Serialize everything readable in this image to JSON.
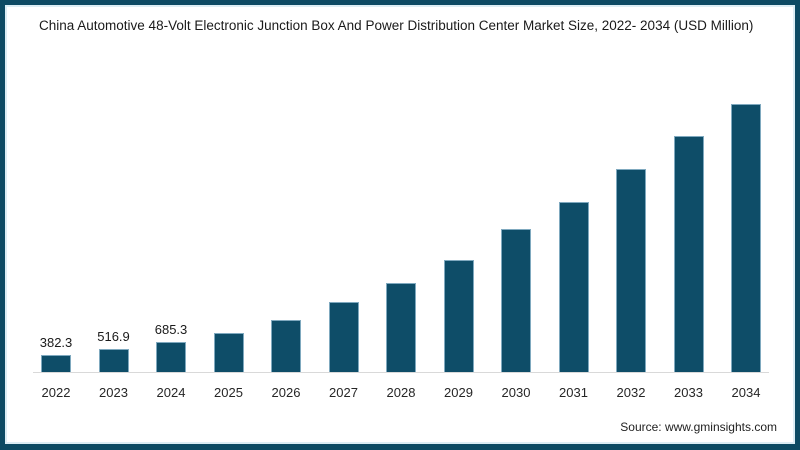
{
  "title": "China Automotive 48-Volt Electronic Junction Box And Power Distribution Center Market Size, 2022- 2034 (USD Million)",
  "source": "Source: www.gminsights.com",
  "colors": {
    "frame_border": "#0d4a63",
    "frame_inner_line": "#dcedf4",
    "bar_fill": "#0e4d68",
    "bar_border": "#7fa9bf",
    "axis_line": "#d9d9d9",
    "text": "#1a1a1a",
    "background": "#ffffff"
  },
  "chart_data": {
    "type": "bar",
    "title": "China Automotive 48-Volt Electronic Junction Box And Power Distribution Center Market Size, 2022- 2034 (USD Million)",
    "categories": [
      "2022",
      "2023",
      "2024",
      "2025",
      "2026",
      "2027",
      "2028",
      "2029",
      "2030",
      "2031",
      "2032",
      "2033",
      "2034"
    ],
    "values": [
      382.3,
      516.9,
      685.3,
      880,
      1155,
      1540,
      1965,
      2465,
      3125,
      3730,
      4445,
      5160,
      5850
    ],
    "data_labels": [
      "382.3",
      "516.9",
      "685.3",
      "",
      "",
      "",
      "",
      "",
      "",
      "",
      "",
      "",
      ""
    ],
    "xlabel": "",
    "ylabel": "",
    "ylim": [
      0,
      5960
    ],
    "grid": false,
    "legend": false,
    "y_axis_visible": false,
    "bar_color": "#0e4d68",
    "bar_border_color": "#7fa9bf"
  }
}
